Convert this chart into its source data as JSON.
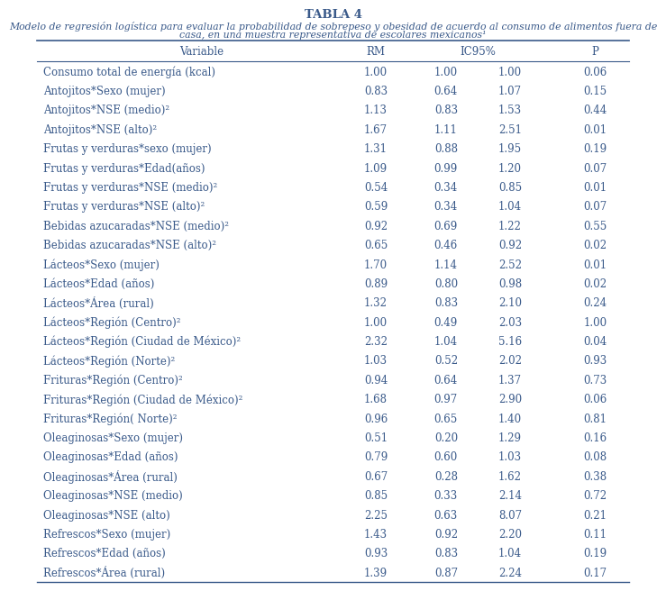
{
  "title": "TABLA 4",
  "subtitle": "Modelo de regresión logística para evaluar la probabilidad de sobrepeso y obesidad de acuerdo al consumo de alimentos fuera de casa, en una muestra representativa de escolares mexicanos¹",
  "rows": [
    [
      "Consumo total de energía (kcal)",
      "1.00",
      "1.00",
      "1.00",
      "0.06"
    ],
    [
      "Antojitos*Sexo (mujer)",
      "0.83",
      "0.64",
      "1.07",
      "0.15"
    ],
    [
      "Antojitos*NSE (medio)²",
      "1.13",
      "0.83",
      "1.53",
      "0.44"
    ],
    [
      "Antojitos*NSE (alto)²",
      "1.67",
      "1.11",
      "2.51",
      "0.01"
    ],
    [
      "Frutas y verduras*sexo (mujer)",
      "1.31",
      "0.88",
      "1.95",
      "0.19"
    ],
    [
      "Frutas y verduras*Edad(años)",
      "1.09",
      "0.99",
      "1.20",
      "0.07"
    ],
    [
      "Frutas y verduras*NSE (medio)²",
      "0.54",
      "0.34",
      "0.85",
      "0.01"
    ],
    [
      "Frutas y verduras*NSE (alto)²",
      "0.59",
      "0.34",
      "1.04",
      "0.07"
    ],
    [
      "Bebidas azucaradas*NSE (medio)²",
      "0.92",
      "0.69",
      "1.22",
      "0.55"
    ],
    [
      "Bebidas azucaradas*NSE (alto)²",
      "0.65",
      "0.46",
      "0.92",
      "0.02"
    ],
    [
      "Lácteos*Sexo (mujer)",
      "1.70",
      "1.14",
      "2.52",
      "0.01"
    ],
    [
      "Lácteos*Edad (años)",
      "0.89",
      "0.80",
      "0.98",
      "0.02"
    ],
    [
      "Lácteos*Área (rural)",
      "1.32",
      "0.83",
      "2.10",
      "0.24"
    ],
    [
      "Lácteos*Región (Centro)²",
      "1.00",
      "0.49",
      "2.03",
      "1.00"
    ],
    [
      "Lácteos*Región (Ciudad de México)²",
      "2.32",
      "1.04",
      "5.16",
      "0.04"
    ],
    [
      "Lácteos*Región (Norte)²",
      "1.03",
      "0.52",
      "2.02",
      "0.93"
    ],
    [
      "Frituras*Región (Centro)²",
      "0.94",
      "0.64",
      "1.37",
      "0.73"
    ],
    [
      "Frituras*Región (Ciudad de México)²",
      "1.68",
      "0.97",
      "2.90",
      "0.06"
    ],
    [
      "Frituras*Región( Norte)²",
      "0.96",
      "0.65",
      "1.40",
      "0.81"
    ],
    [
      "Oleaginosas*Sexo (mujer)",
      "0.51",
      "0.20",
      "1.29",
      "0.16"
    ],
    [
      "Oleaginosas*Edad (años)",
      "0.79",
      "0.60",
      "1.03",
      "0.08"
    ],
    [
      "Oleaginosas*Área (rural)",
      "0.67",
      "0.28",
      "1.62",
      "0.38"
    ],
    [
      "Oleaginosas*NSE (medio)",
      "0.85",
      "0.33",
      "2.14",
      "0.72"
    ],
    [
      "Oleaginosas*NSE (alto)",
      "2.25",
      "0.63",
      "8.07",
      "0.21"
    ],
    [
      "Refrescos*Sexo (mujer)",
      "1.43",
      "0.92",
      "2.20",
      "0.11"
    ],
    [
      "Refrescos*Edad (años)",
      "0.93",
      "0.83",
      "1.04",
      "0.19"
    ],
    [
      "Refrescos*Área (rural)",
      "1.39",
      "0.87",
      "2.24",
      "0.17"
    ]
  ],
  "text_color": "#3a5a8a",
  "line_color": "#3a5a8a",
  "bg_color": "#ffffff",
  "font_size": 8.5,
  "title_font_size": 9.5,
  "subtitle_font_size": 7.8
}
